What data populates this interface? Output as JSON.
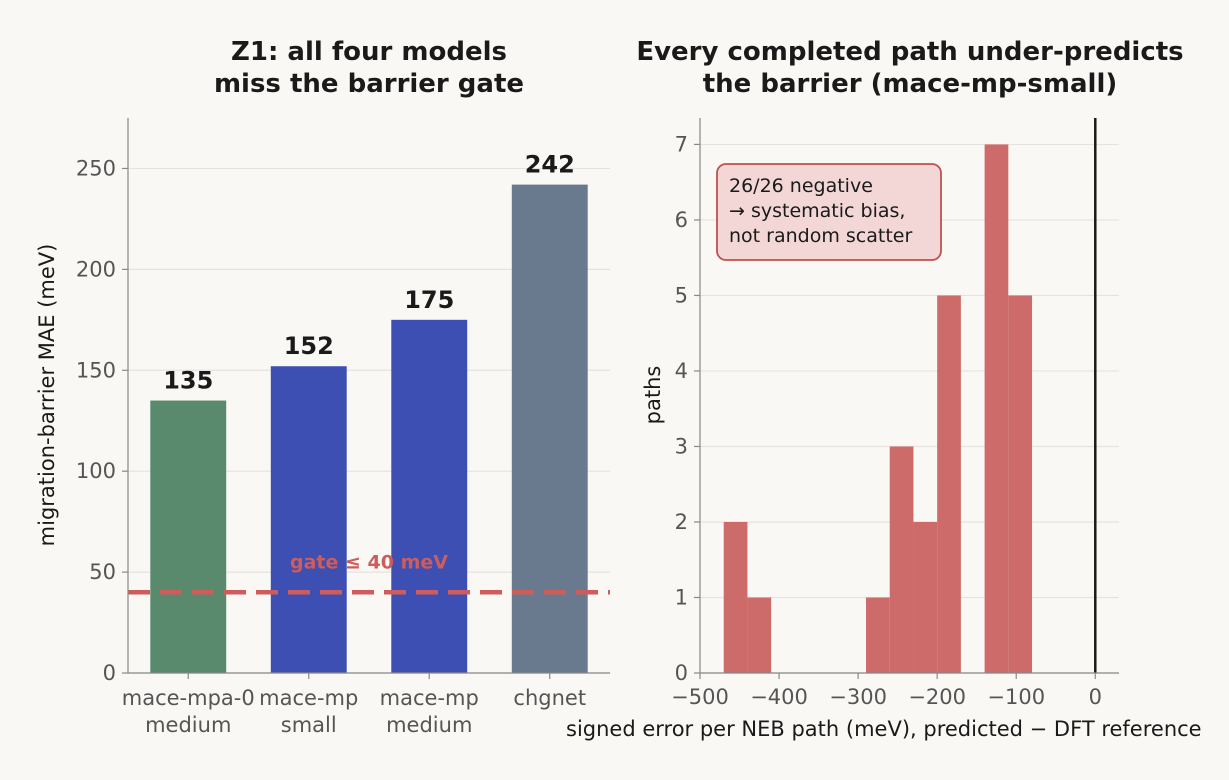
{
  "chart_data": [
    {
      "type": "bar",
      "title_lines": [
        "Z1: all four models",
        "miss the barrier gate"
      ],
      "categories": [
        {
          "lines": [
            "mace-mpa-0",
            "medium"
          ],
          "color": "#5a8a6e"
        },
        {
          "lines": [
            "mace-mp",
            "small"
          ],
          "color": "#3d4fb3"
        },
        {
          "lines": [
            "mace-mp",
            "medium"
          ],
          "color": "#3d4fb3"
        },
        {
          "lines": [
            "chgnet"
          ],
          "color": "#697a8f"
        }
      ],
      "values": [
        135,
        152,
        175,
        242
      ],
      "value_labels": [
        "135",
        "152",
        "175",
        "242"
      ],
      "xlabel": "",
      "ylabel": "migration-barrier MAE (meV)",
      "ylim": [
        0,
        275
      ],
      "yticks": [
        0,
        50,
        100,
        150,
        200,
        250
      ],
      "grid": true,
      "reference_line": {
        "value": 40,
        "label": "gate ≤ 40 meV",
        "color": "#cd5c5c",
        "style": "dashed"
      }
    },
    {
      "type": "bar",
      "subtype": "histogram",
      "title_lines": [
        "Every completed path under-predicts",
        "the barrier (mace-mp-small)"
      ],
      "bins": [
        {
          "x0": -470,
          "x1": -440,
          "count": 2
        },
        {
          "x0": -440,
          "x1": -410,
          "count": 1
        },
        {
          "x0": -410,
          "x1": -380,
          "count": 0
        },
        {
          "x0": -380,
          "x1": -350,
          "count": 0
        },
        {
          "x0": -350,
          "x1": -320,
          "count": 0
        },
        {
          "x0": -320,
          "x1": -290,
          "count": 0
        },
        {
          "x0": -290,
          "x1": -260,
          "count": 1
        },
        {
          "x0": -260,
          "x1": -230,
          "count": 3
        },
        {
          "x0": -230,
          "x1": -200,
          "count": 2
        },
        {
          "x0": -200,
          "x1": -170,
          "count": 5
        },
        {
          "x0": -170,
          "x1": -140,
          "count": 0
        },
        {
          "x0": -140,
          "x1": -110,
          "count": 7
        },
        {
          "x0": -110,
          "x1": -80,
          "count": 5
        }
      ],
      "bar_color": "#cd6b6b",
      "xlabel": "signed error per NEB path (meV), predicted − DFT reference",
      "ylabel": "paths",
      "xlim": [
        -500,
        30
      ],
      "ylim": [
        0,
        7.35
      ],
      "xticks": [
        -500,
        -400,
        -300,
        -200,
        -100,
        0
      ],
      "xtick_labels": [
        "−500",
        "−400",
        "−300",
        "−200",
        "−100",
        "0"
      ],
      "yticks": [
        0,
        1,
        2,
        3,
        4,
        5,
        6,
        7
      ],
      "grid": true,
      "vline": {
        "value": 0,
        "color": "#1a1a1a"
      },
      "annotation": {
        "lines": [
          "26/26 negative",
          "→ systematic bias,",
          "not random scatter"
        ],
        "placement": "top-left",
        "fill": "#f3d6d6",
        "border": "#c0504d"
      }
    }
  ]
}
